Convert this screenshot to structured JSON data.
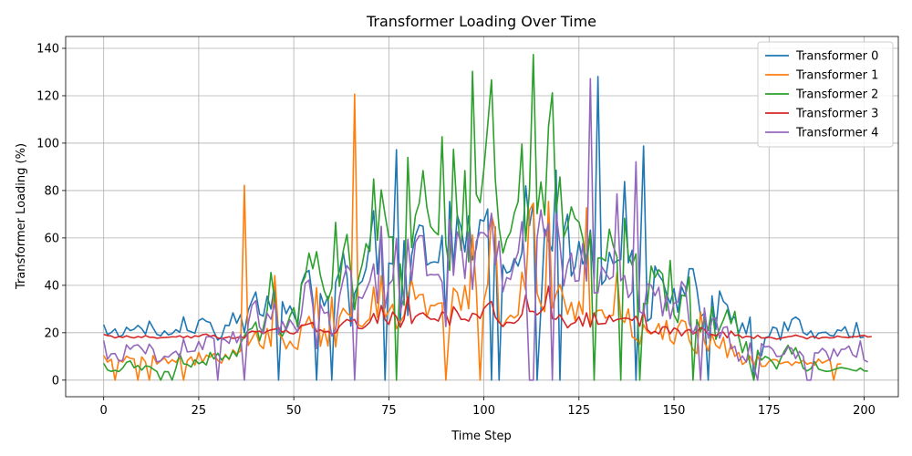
{
  "chart_data": {
    "type": "line",
    "title": "Transformer Loading Over Time",
    "xlabel": "Time Step",
    "ylabel": "Transformer Loading (%)",
    "xlim": [
      -10,
      209
    ],
    "ylim": [
      -7,
      145
    ],
    "xticks": [
      0,
      25,
      50,
      75,
      100,
      125,
      150,
      175,
      200
    ],
    "yticks": [
      0,
      20,
      40,
      60,
      80,
      100,
      120,
      140
    ],
    "grid": true,
    "legend_position": "top-right",
    "series": [
      {
        "name": "Transformer 0",
        "color": "#1f77b4",
        "values": [
          23.4,
          19.2,
          20.1,
          21.6,
          18.3,
          19.0,
          22.3,
          20.9,
          21.5,
          23.1,
          21.7,
          19.4,
          24.9,
          22.0,
          19.3,
          18.7,
          20.8,
          19.1,
          19.6,
          21.3,
          20.2,
          26.7,
          21.0,
          20.4,
          19.8,
          25.1,
          26.0,
          24.8,
          24.3,
          20.4,
          16.9,
          18.2,
          23.2,
          23.0,
          28.4,
          24.0,
          27.6,
          20.0,
          29.4,
          33.5,
          37.2,
          27.8,
          27.0,
          35.4,
          30.0,
          41.2,
          0.0,
          33.1,
          28.0,
          31.3,
          27.5,
          23.9,
          40.7,
          45.1,
          46.3,
          34.0,
          0.0,
          36.5,
          31.3,
          35.3,
          0.0,
          41.2,
          45.9,
          53.9,
          43.7,
          22.8,
          36.6,
          40.3,
          41.8,
          47.0,
          58.4,
          71.5,
          44.8,
          64.5,
          0.0,
          49.4,
          49.0,
          97.2,
          23.7,
          58.9,
          27.3,
          52.6,
          61.0,
          65.4,
          64.9,
          48.5,
          49.6,
          49.9,
          49.6,
          61.0,
          25.7,
          75.4,
          48.2,
          69.6,
          64.4,
          54.1,
          69.3,
          50.7,
          55.6,
          67.7,
          67.1,
          72.2,
          0.0,
          64.6,
          0.0,
          48.7,
          45.2,
          46.0,
          51.3,
          48.1,
          53.7,
          82.0,
          65.2,
          74.6,
          0.0,
          30.1,
          63.7,
          58.7,
          54.5,
          88.6,
          0.0,
          62.8,
          70.0,
          43.9,
          47.7,
          58.5,
          49.0,
          52.1,
          63.3,
          42.6,
          128.1,
          40.4,
          42.4,
          53.9,
          49.1,
          50.4,
          50.8,
          83.8,
          49.5,
          54.8,
          0.0,
          46.3,
          98.8,
          24.9,
          26.2,
          48.1,
          44.3,
          42.0,
          36.5,
          32.4,
          38.6,
          28.7,
          39.4,
          35.5,
          47.0,
          47.0,
          38.6,
          26.8,
          28.1,
          0.0,
          35.6,
          21.4,
          37.6,
          33.2,
          31.7,
          25.5,
          26.7,
          19.8,
          24.1,
          19.5,
          26.6,
          0.0,
          11.3,
          10.3,
          17.9,
          18.4,
          22.4,
          21.8,
          16.9,
          24.5,
          20.8,
          25.6,
          26.6,
          25.4,
          20.0,
          19.1,
          20.8,
          17.7,
          19.8,
          20.1,
          20.2,
          18.9,
          18.6,
          21.2,
          20.8,
          22.5,
          18.5,
          18.0,
          24.3,
          17.9,
          18.2
        ]
      },
      {
        "name": "Transformer 1",
        "color": "#ff7f0e",
        "values": [
          10.4,
          7.6,
          8.8,
          0.0,
          8.5,
          7.6,
          10.1,
          9.2,
          8.9,
          0.0,
          9.8,
          7.7,
          0.0,
          10.4,
          6.8,
          8.1,
          9.4,
          7.0,
          8.6,
          7.5,
          9.7,
          0.0,
          8.2,
          9.8,
          6.3,
          11.7,
          7.5,
          10.6,
          9.7,
          11.2,
          8.3,
          7.2,
          10.9,
          8.6,
          12.8,
          11.0,
          12.4,
          82.2,
          14.6,
          17.6,
          20.6,
          14.9,
          13.3,
          21.8,
          14.3,
          44.1,
          19.6,
          17.7,
          13.2,
          16.4,
          14.0,
          13.0,
          22.7,
          23.4,
          26.9,
          22.0,
          39.0,
          14.3,
          21.7,
          14.4,
          35.0,
          14.0,
          26.6,
          30.3,
          28.2,
          26.9,
          120.7,
          23.2,
          22.6,
          24.5,
          25.9,
          39.3,
          26.4,
          44.0,
          26.5,
          29.1,
          32.0,
          21.7,
          24.5,
          27.2,
          35.8,
          42.2,
          34.1,
          36.0,
          36.2,
          26.6,
          31.6,
          31.4,
          32.4,
          32.6,
          0.0,
          23.1,
          38.8,
          37.0,
          29.5,
          40.0,
          30.1,
          61.3,
          38.7,
          0.0,
          33.4,
          40.5,
          69.6,
          63.3,
          24.8,
          22.6,
          25.6,
          27.4,
          26.2,
          27.6,
          45.5,
          37.9,
          71.7,
          74.6,
          36.8,
          31.7,
          28.9,
          75.4,
          30.4,
          36.3,
          40.4,
          34.4,
          27.8,
          32.8,
          25.1,
          33.2,
          27.8,
          72.7,
          22.7,
          28.2,
          29.4,
          29.6,
          26.1,
          27.1,
          27.4,
          45.6,
          26.2,
          24.3,
          30.1,
          18.2,
          17.3,
          15.2,
          23.4,
          20.3,
          19.5,
          20.6,
          23.9,
          17.2,
          25.1,
          16.9,
          15.2,
          22.3,
          25.3,
          24.6,
          16.8,
          12.9,
          11.2,
          28.7,
          16.2,
          12.3,
          19.3,
          14.7,
          13.4,
          18.0,
          9.5,
          15.1,
          10.0,
          11.7,
          6.6,
          7.8,
          10.1,
          6.0,
          10.3,
          5.8,
          5.9,
          7.9,
          8.7,
          8.5,
          6.9,
          7.5,
          7.7,
          6.2,
          7.7,
          7.2,
          8.4,
          6.7,
          7.4,
          6.3,
          8.9,
          7.2,
          8.0,
          8.8,
          0.0,
          6.8,
          6.9
        ]
      },
      {
        "name": "Transformer 2",
        "color": "#2ca02c",
        "values": [
          7.1,
          4.3,
          3.7,
          4.1,
          3.6,
          5.1,
          7.5,
          8.1,
          5.2,
          6.2,
          4.2,
          6.0,
          5.8,
          4.7,
          3.6,
          0.0,
          3.6,
          3.5,
          0.0,
          5.1,
          11.1,
          6.9,
          6.6,
          5.5,
          8.6,
          6.9,
          7.8,
          6.4,
          11.7,
          8.9,
          11.4,
          8.5,
          10.3,
          9.0,
          12.3,
          10.0,
          15.4,
          18.7,
          21.1,
          21.8,
          24.5,
          16.6,
          22.3,
          29.5,
          45.4,
          33.4,
          20.7,
          18.6,
          22.2,
          27.1,
          30.6,
          22.4,
          40.3,
          43.6,
          53.6,
          47.0,
          54.2,
          44.2,
          37.7,
          33.7,
          38.7,
          66.6,
          39.6,
          54.5,
          61.5,
          45.8,
          29.7,
          42.6,
          48.9,
          57.6,
          54.3,
          84.9,
          59.0,
          80.3,
          69.8,
          60.3,
          60.4,
          0.0,
          49.0,
          31.6,
          94.0,
          55.9,
          69.6,
          74.7,
          88.4,
          73.0,
          64.8,
          62.7,
          61.3,
          102.7,
          57.3,
          46.3,
          97.4,
          69.5,
          54.8,
          88.4,
          49.9,
          130.3,
          78.4,
          74.9,
          89.1,
          107.5,
          126.7,
          84.7,
          64.2,
          53.6,
          59.4,
          62.5,
          70.5,
          75.3,
          99.6,
          58.6,
          80.3,
          137.4,
          70.2,
          83.6,
          69.6,
          107.0,
          121.2,
          70.8,
          85.7,
          60.4,
          64.8,
          73.1,
          68.2,
          66.7,
          60.0,
          48.6,
          62.1,
          0.0,
          51.5,
          51.5,
          50.3,
          63.7,
          56.8,
          52.0,
          0.0,
          68.3,
          52.7,
          48.5,
          53.3,
          0.0,
          32.4,
          32.2,
          48.1,
          43.3,
          46.6,
          44.7,
          29.3,
          50.5,
          27.6,
          24.3,
          35.9,
          35.4,
          43.5,
          0.0,
          25.5,
          20.4,
          26.0,
          21.0,
          31.0,
          17.2,
          21.7,
          25.4,
          29.7,
          23.8,
          29.0,
          18.3,
          11.6,
          16.2,
          6.6,
          0.0,
          12.6,
          8.4,
          10.0,
          9.2,
          7.4,
          4.7,
          8.8,
          12.2,
          14.7,
          11.0,
          13.7,
          9.7,
          5.0,
          3.9,
          4.8,
          7.8,
          4.7,
          4.1,
          3.7,
          3.8,
          4.4,
          5.0,
          5.3,
          5.0,
          4.7,
          4.2,
          3.9,
          5.1,
          3.9,
          3.8
        ]
      },
      {
        "name": "Transformer 3",
        "color": "#d62728",
        "values": [
          19.3,
          18.8,
          18.6,
          17.8,
          18.4,
          18.0,
          18.7,
          18.1,
          17.8,
          18.4,
          18.0,
          18.8,
          18.1,
          18.1,
          17.7,
          17.9,
          18.0,
          18.1,
          18.3,
          18.2,
          18.7,
          17.9,
          18.6,
          17.8,
          18.7,
          18.4,
          19.2,
          19.4,
          18.5,
          18.9,
          17.8,
          17.5,
          17.9,
          18.3,
          17.6,
          17.9,
          18.4,
          17.7,
          19.9,
          20.7,
          20.4,
          20.7,
          19.6,
          20.7,
          21.2,
          21.5,
          22.1,
          20.2,
          21.0,
          19.8,
          19.5,
          20.7,
          23.2,
          23.3,
          23.8,
          24.3,
          20.5,
          21.2,
          20.3,
          20.6,
          19.5,
          19.9,
          22.7,
          24.3,
          25.6,
          24.8,
          25.6,
          21.9,
          21.7,
          22.9,
          24.5,
          28.1,
          24.0,
          31.5,
          25.5,
          23.5,
          28.7,
          26.7,
          22.3,
          25.7,
          35.2,
          23.9,
          26.8,
          27.9,
          28.4,
          26.9,
          25.7,
          25.8,
          24.9,
          28.8,
          28.0,
          23.2,
          31.0,
          28.7,
          25.6,
          25.7,
          24.9,
          28.2,
          27.7,
          26.0,
          30.2,
          32.0,
          33.2,
          26.6,
          24.4,
          22.6,
          24.4,
          24.3,
          24.0,
          25.3,
          27.7,
          36.0,
          29.0,
          29.0,
          27.6,
          28.9,
          31.2,
          39.6,
          25.9,
          25.7,
          27.6,
          24.9,
          22.1,
          23.7,
          24.3,
          26.8,
          22.8,
          28.4,
          22.4,
          28.3,
          23.6,
          23.8,
          23.9,
          27.4,
          24.8,
          25.6,
          25.8,
          26.2,
          26.0,
          25.2,
          27.0,
          22.8,
          29.5,
          21.3,
          19.8,
          20.6,
          19.5,
          22.4,
          22.5,
          19.6,
          22.0,
          21.3,
          18.7,
          20.7,
          21.4,
          19.5,
          20.4,
          22.1,
          21.4,
          19.2,
          19.3,
          18.7,
          19.9,
          20.2,
          17.9,
          20.7,
          18.8,
          19.1,
          17.8,
          18.5,
          18.3,
          17.6,
          18.9,
          17.8,
          17.8,
          18.1,
          17.8,
          17.3,
          17.6,
          18.0,
          18.3,
          18.5,
          19.0,
          18.5,
          18.1,
          17.4,
          18.3,
          18.3,
          17.5,
          18.0,
          18.1,
          17.8,
          17.9,
          18.6,
          18.2,
          18.1,
          17.9,
          18.4,
          18.3,
          18.7,
          18.9,
          18.2,
          18.4
        ]
      },
      {
        "name": "Transformer 4",
        "color": "#9467bd",
        "values": [
          16.7,
          8.8,
          11.1,
          11.2,
          8.0,
          8.4,
          14.9,
          13.0,
          14.6,
          14.9,
          13.3,
          11.1,
          15.2,
          13.0,
          7.6,
          8.2,
          10.1,
          9.7,
          11.2,
          12.2,
          9.7,
          17.3,
          11.9,
          12.1,
          12.3,
          16.3,
          12.9,
          18.3,
          18.3,
          17.5,
          0.0,
          17.5,
          16.9,
          15.5,
          20.4,
          15.8,
          19.1,
          0.0,
          23.7,
          31.6,
          33.5,
          22.4,
          19.6,
          28.2,
          25.7,
          32.5,
          19.4,
          24.8,
          21.1,
          25.4,
          23.0,
          20.3,
          27.6,
          40.8,
          42.2,
          31.4,
          13.3,
          32.0,
          28.2,
          28.7,
          18.6,
          21.5,
          35.1,
          42.5,
          48.3,
          46.0,
          0.0,
          35.1,
          34.5,
          38.0,
          41.8,
          49.0,
          32.5,
          64.9,
          30.4,
          40.4,
          42.3,
          59.8,
          28.5,
          35.3,
          59.4,
          42.2,
          58.2,
          60.9,
          60.9,
          44.1,
          44.6,
          44.4,
          44.6,
          41.5,
          22.6,
          67.5,
          44.2,
          62.6,
          58.0,
          42.9,
          62.4,
          38.3,
          58.5,
          62.3,
          62.1,
          60.3,
          70.4,
          48.7,
          58.7,
          37.3,
          43.3,
          42.5,
          49.4,
          53.9,
          66.8,
          42.6,
          0.0,
          0.0,
          60.1,
          71.8,
          60.3,
          66.1,
          0.0,
          70.3,
          57.4,
          39.8,
          48.7,
          53.6,
          41.7,
          42.0,
          57.6,
          41.8,
          127.2,
          36.8,
          36.9,
          47.9,
          45.3,
          42.6,
          43.7,
          78.6,
          41.9,
          44.1,
          34.8,
          37.4,
          92.1,
          28.9,
          27.9,
          40.6,
          40.1,
          35.6,
          39.2,
          27.1,
          35.9,
          25.9,
          32.4,
          33.0,
          41.6,
          39.2,
          24.0,
          19.7,
          23.5,
          0.0,
          30.5,
          17.7,
          25.6,
          26.3,
          17.7,
          22.2,
          22.5,
          13.2,
          14.3,
          8.0,
          10.2,
          7.6,
          15.7,
          5.8,
          0.0,
          15.4,
          14.0,
          14.3,
          12.9,
          10.0,
          10.1,
          11.0,
          14.1,
          13.3,
          9.1,
          12.1,
          10.1,
          0.0,
          0.0,
          11.5,
          11.5,
          13.4,
          12.0,
          8.2,
          13.2,
          10.1,
          13.0,
          13.1,
          14.4,
          10.7,
          9.7,
          16.5,
          8.5,
          7.6
        ]
      }
    ]
  }
}
